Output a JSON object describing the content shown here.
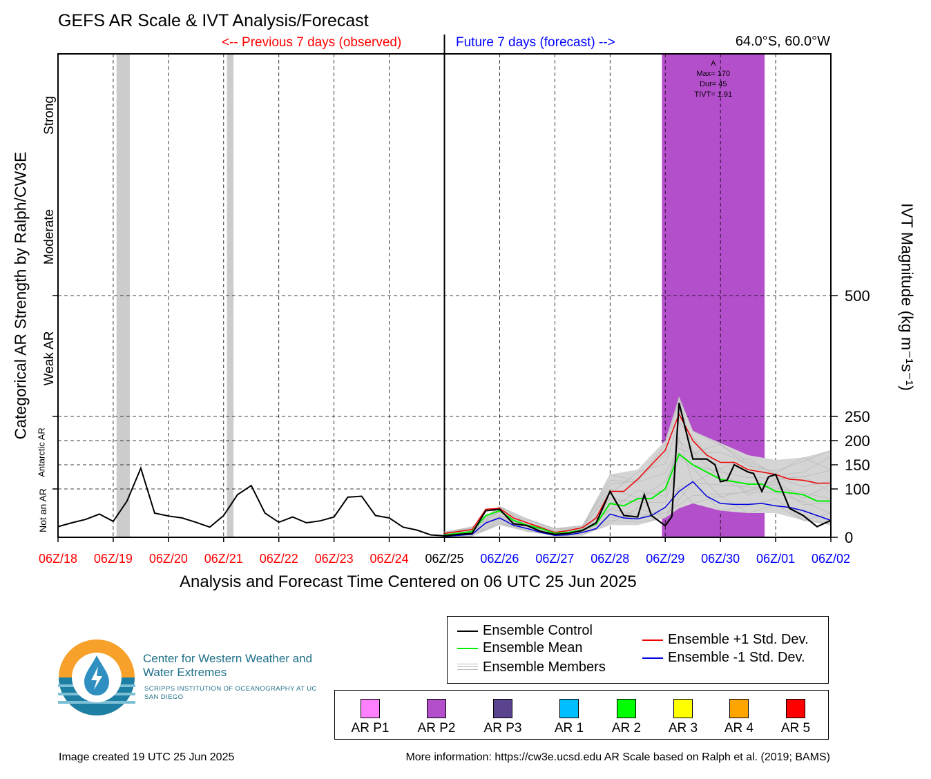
{
  "header": {
    "title": "GEFS AR Scale & IVT Analysis/Forecast",
    "previous_label": "<-- Previous 7 days (observed)",
    "future_label": "Future 7 days (forecast) -->",
    "location": "64.0°S, 60.0°W"
  },
  "axes": {
    "x_title": "Analysis and Forecast Time Centered on 06 UTC 25 Jun 2025",
    "y_left_title": "Categorical AR Strength by Ralph/CW3E",
    "y_right_title": "IVT Magnitude (kg m⁻¹s⁻¹)",
    "categories_left": [
      "Not an AR",
      "Antarctic AR",
      "Weak AR",
      "Moderate",
      "Strong"
    ]
  },
  "event_annotation": {
    "name": "A",
    "max": "Max= 170",
    "dur": "Dur= 45",
    "tivt": "TIVT= 1.91"
  },
  "legend": {
    "control": "Ensemble Control",
    "mean": "Ensemble Mean",
    "members": "Ensemble Members",
    "plus": "Ensemble +1 Std. Dev.",
    "minus": "Ensemble -1 Std. Dev."
  },
  "ar_categories": [
    {
      "label": "AR P1",
      "color": "#ff80ff"
    },
    {
      "label": "AR P2",
      "color": "#b44fcc"
    },
    {
      "label": "AR P3",
      "color": "#5a4490"
    },
    {
      "label": "AR 1",
      "color": "#00bfff"
    },
    {
      "label": "AR 2",
      "color": "#00ff00"
    },
    {
      "label": "AR 3",
      "color": "#ffff00"
    },
    {
      "label": "AR 4",
      "color": "#ffa500"
    },
    {
      "label": "AR 5",
      "color": "#ff0000"
    }
  ],
  "logo": {
    "org_name": "Center for Western Weather and Water Extremes",
    "org_sub": "SCRIPPS INSTITUTION OF OCEANOGRAPHY AT UC SAN DIEGO"
  },
  "footer": {
    "created": "Image created 19 UTC 25 Jun 2025",
    "info": "More information: https://cw3e.ucsd.edu AR Scale based on Ralph et al. (2019; BAMS)"
  },
  "colors": {
    "observed": "#ff0000",
    "forecast": "#0000ff",
    "control": "#000000",
    "mean": "#00ee00",
    "plus_sd": "#ee0000",
    "minus_sd": "#0000dd",
    "members": "#bbbbbb",
    "ar_shading": "#b44fcc",
    "gray_shading": "#cccccc"
  },
  "chart_data": {
    "type": "line",
    "x_unit": "days relative to 06Z/25 Jun 2025",
    "xlim": [
      -7,
      7
    ],
    "ylim": [
      0,
      1000
    ],
    "y_ticks": [
      0,
      100,
      150,
      200,
      250,
      500
    ],
    "x_tick_labels": [
      {
        "x": -7,
        "label": "06Z/18",
        "period": "observed"
      },
      {
        "x": -6,
        "label": "06Z/19",
        "period": "observed"
      },
      {
        "x": -5,
        "label": "06Z/20",
        "period": "observed"
      },
      {
        "x": -4,
        "label": "06Z/21",
        "period": "observed"
      },
      {
        "x": -3,
        "label": "06Z/22",
        "period": "observed"
      },
      {
        "x": -2,
        "label": "06Z/23",
        "period": "observed"
      },
      {
        "x": -1,
        "label": "06Z/24",
        "period": "observed"
      },
      {
        "x": 0,
        "label": "06Z/25",
        "period": "now"
      },
      {
        "x": 1,
        "label": "06Z/26",
        "period": "forecast"
      },
      {
        "x": 2,
        "label": "06Z/27",
        "period": "forecast"
      },
      {
        "x": 3,
        "label": "06Z/28",
        "period": "forecast"
      },
      {
        "x": 4,
        "label": "06Z/29",
        "period": "forecast"
      },
      {
        "x": 5,
        "label": "06Z/30",
        "period": "forecast"
      },
      {
        "x": 6,
        "label": "06Z/01",
        "period": "forecast"
      },
      {
        "x": 7,
        "label": "06Z/02",
        "period": "forecast"
      }
    ],
    "gray_shading": [
      [
        -5.94,
        -5.7
      ],
      [
        -3.94,
        -3.82
      ]
    ],
    "ar_event_shading": {
      "x": [
        3.94,
        5.8
      ],
      "category": "AR P2"
    },
    "observed_control": {
      "x": [
        -7,
        -6.75,
        -6.5,
        -6.25,
        -6,
        -5.75,
        -5.5,
        -5.25,
        -5,
        -4.75,
        -4.5,
        -4.25,
        -4,
        -3.75,
        -3.5,
        -3.25,
        -3,
        -2.75,
        -2.5,
        -2.25,
        -2,
        -1.75,
        -1.5,
        -1.25,
        -1,
        -0.75,
        -0.5,
        -0.25,
        0
      ],
      "y": [
        22,
        30,
        37,
        48,
        33,
        75,
        143,
        50,
        44,
        40,
        31,
        21,
        45,
        88,
        107,
        50,
        31,
        42,
        30,
        34,
        42,
        83,
        85,
        45,
        40,
        21,
        15,
        5,
        3
      ]
    },
    "forecast_control": {
      "x": [
        0,
        0.25,
        0.5,
        0.75,
        1,
        1.25,
        1.5,
        1.75,
        2,
        2.25,
        2.5,
        2.75,
        3,
        3.25,
        3.5,
        3.62,
        3.75,
        4,
        4.12,
        4.25,
        4.5,
        4.75,
        4.9,
        5,
        5.12,
        5.25,
        5.5,
        5.6,
        5.75,
        5.87,
        6,
        6.25,
        6.5,
        6.75,
        7
      ],
      "y": [
        3,
        6,
        8,
        55,
        58,
        28,
        24,
        12,
        6,
        8,
        14,
        30,
        95,
        45,
        42,
        88,
        45,
        24,
        43,
        278,
        162,
        162,
        150,
        115,
        118,
        150,
        135,
        132,
        95,
        125,
        130,
        60,
        45,
        22,
        35
      ]
    },
    "ensemble_mean": {
      "x": [
        0,
        0.25,
        0.5,
        0.75,
        1,
        1.25,
        1.5,
        1.75,
        2,
        2.25,
        2.5,
        2.75,
        3,
        3.25,
        3.5,
        3.75,
        4,
        4.25,
        4.5,
        4.75,
        5,
        5.25,
        5.5,
        5.75,
        6,
        6.25,
        6.5,
        6.75,
        7
      ],
      "y": [
        5,
        8,
        12,
        45,
        55,
        35,
        25,
        18,
        8,
        10,
        15,
        28,
        70,
        65,
        80,
        80,
        100,
        172,
        150,
        135,
        120,
        115,
        110,
        110,
        95,
        92,
        88,
        75,
        75
      ]
    },
    "plus_one_sd": {
      "x": [
        0,
        0.25,
        0.5,
        0.75,
        1,
        1.25,
        1.5,
        1.75,
        2,
        2.25,
        2.5,
        2.75,
        3,
        3.25,
        3.5,
        3.75,
        4,
        4.25,
        4.5,
        4.75,
        5,
        5.25,
        5.5,
        5.75,
        6,
        6.25,
        6.5,
        6.75,
        7
      ],
      "y": [
        8,
        12,
        16,
        58,
        60,
        40,
        30,
        20,
        10,
        14,
        20,
        40,
        95,
        95,
        120,
        150,
        180,
        255,
        200,
        170,
        155,
        155,
        140,
        135,
        130,
        120,
        118,
        112,
        112
      ]
    },
    "minus_one_sd": {
      "x": [
        0,
        0.25,
        0.5,
        0.75,
        1,
        1.25,
        1.5,
        1.75,
        2,
        2.25,
        2.5,
        2.75,
        3,
        3.25,
        3.5,
        3.75,
        4,
        4.25,
        4.5,
        4.75,
        5,
        5.25,
        5.5,
        5.75,
        6,
        6.25,
        6.5,
        6.75,
        7
      ],
      "y": [
        2,
        4,
        6,
        30,
        40,
        25,
        18,
        10,
        4,
        5,
        10,
        18,
        48,
        40,
        38,
        45,
        62,
        95,
        115,
        85,
        70,
        68,
        68,
        70,
        65,
        62,
        55,
        45,
        35
      ]
    },
    "member_envelope": {
      "x": [
        0,
        0.5,
        1,
        1.5,
        2,
        2.5,
        3,
        3.5,
        4,
        4.25,
        4.5,
        5,
        5.5,
        6,
        6.5,
        7
      ],
      "y_min": [
        0,
        2,
        25,
        12,
        2,
        4,
        25,
        25,
        40,
        60,
        70,
        55,
        50,
        50,
        35,
        25
      ],
      "y_max": [
        12,
        22,
        65,
        38,
        18,
        25,
        130,
        140,
        200,
        290,
        220,
        195,
        170,
        160,
        165,
        180
      ]
    },
    "legend_placement": "bottom-right, below plot"
  }
}
